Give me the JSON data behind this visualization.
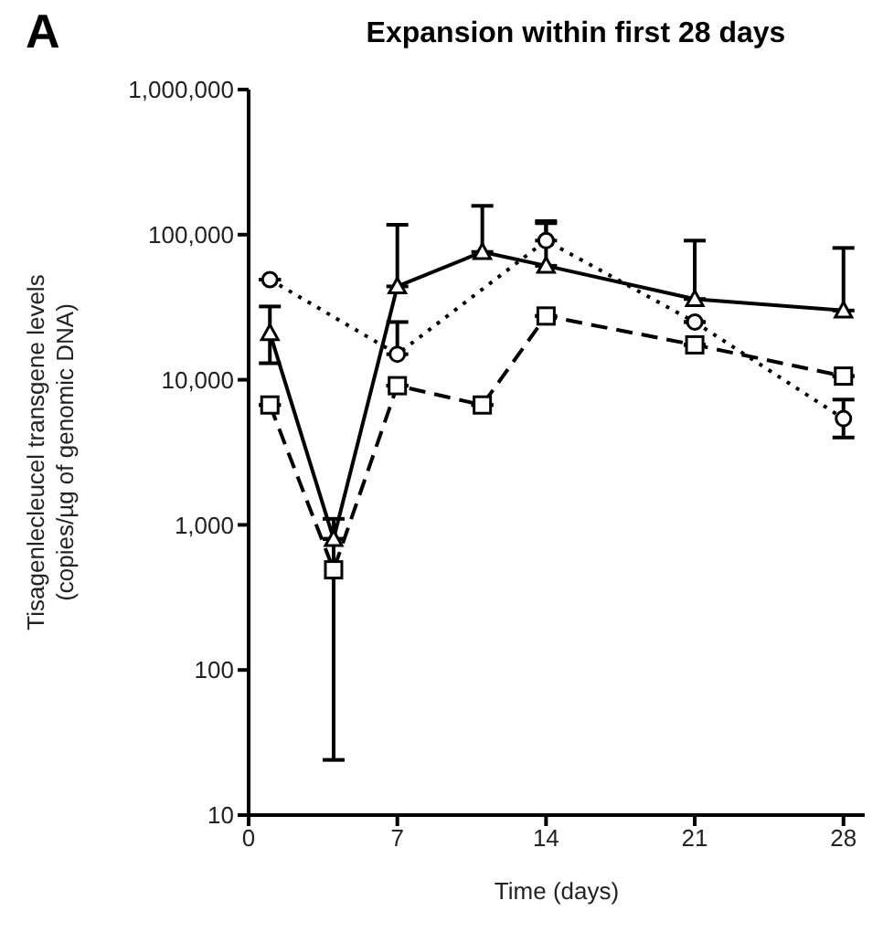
{
  "chart_data": {
    "type": "line",
    "title": "Expansion within first 28 days",
    "xlabel": "Time (days)",
    "ylabel": "Tisagenlecleucel transgene levels\n(copies/µg of genomic DNA)",
    "annotations": [
      "A"
    ],
    "log": "y",
    "grid": false,
    "legend": false,
    "xlim": [
      0,
      29
    ],
    "xticks": [
      0,
      7,
      14,
      21,
      28
    ],
    "ylim": [
      10,
      1000000
    ],
    "yticks": [
      10,
      100,
      {
        "value": 1000,
        "label": "1,000"
      },
      {
        "value": 10000,
        "label": "10,000"
      },
      {
        "value": 100000,
        "label": "100,000"
      },
      {
        "value": 1000000,
        "label": "1,000,000"
      }
    ],
    "series": [
      {
        "color": "#000000",
        "marker": "triangle",
        "line_style": "solid",
        "x": [
          1,
          4,
          7,
          11,
          14,
          21,
          28
        ],
        "values": [
          21000,
          800,
          44000,
          76000,
          61000,
          36000,
          30000
        ],
        "errors": [
          [
            13000,
            32000
          ],
          null,
          [
            44000,
            117000
          ],
          [
            76000,
            158000
          ],
          [
            61000,
            124000
          ],
          [
            36000,
            91000
          ],
          [
            30000,
            81000
          ]
        ]
      },
      {
        "color": "#000000",
        "marker": "circle",
        "line_style": "dotted",
        "x": [
          1,
          7,
          14,
          21,
          28
        ],
        "values": [
          49000,
          15000,
          91000,
          25000,
          5400
        ],
        "errors": [
          null,
          [
            15000,
            25000
          ],
          [
            91000,
            120000
          ],
          null,
          [
            4000,
            7300
          ]
        ]
      },
      {
        "color": "#000000",
        "marker": "square",
        "line_style": "dashed",
        "x": [
          1,
          4,
          7,
          11,
          14,
          21,
          28
        ],
        "values": [
          6700,
          490,
          9100,
          6700,
          27500,
          17400,
          10600
        ],
        "errors": [
          null,
          [
            24,
            1100
          ],
          null,
          null,
          null,
          null,
          null
        ]
      }
    ]
  }
}
